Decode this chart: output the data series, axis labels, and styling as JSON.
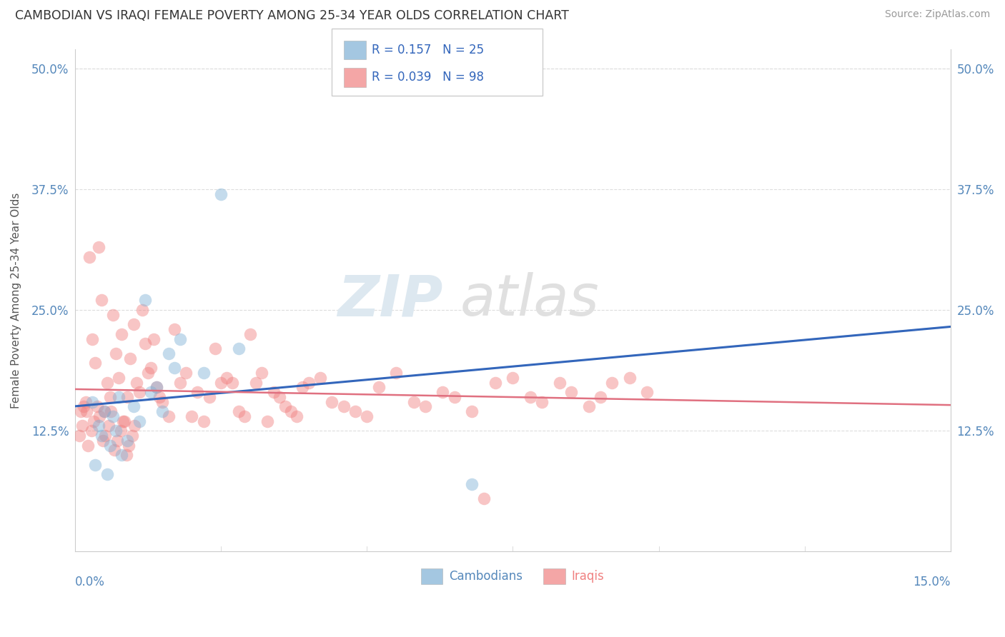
{
  "title": "CAMBODIAN VS IRAQI FEMALE POVERTY AMONG 25-34 YEAR OLDS CORRELATION CHART",
  "source": "Source: ZipAtlas.com",
  "ylabel": "Female Poverty Among 25-34 Year Olds",
  "xlim": [
    0.0,
    15.0
  ],
  "ylim": [
    0.0,
    52.0
  ],
  "yticks": [
    12.5,
    25.0,
    37.5,
    50.0
  ],
  "ytick_labels": [
    "12.5%",
    "25.0%",
    "37.5%",
    "50.0%"
  ],
  "xtick_left": "0.0%",
  "xtick_right": "15.0%",
  "cambodian_R": 0.157,
  "cambodian_N": 25,
  "iraqi_R": 0.039,
  "iraqi_N": 98,
  "cambodian_color": "#7EB0D5",
  "iraqi_color": "#F08080",
  "cambodian_trend_color": "#3366BB",
  "iraqi_trend_color": "#E07080",
  "background_color": "#ffffff",
  "grid_color": "#dddddd",
  "axis_color": "#cccccc",
  "tick_color": "#5588BB",
  "title_color": "#333333",
  "source_color": "#999999",
  "ylabel_color": "#555555",
  "legend_border_color": "#cccccc",
  "legend_text_color": "#3366BB",
  "legend_N_color": "#E07070",
  "watermark_zip_color": "#dde8f0",
  "watermark_atlas_color": "#e0e0e0",
  "cam_x": [
    0.3,
    1.2,
    2.5,
    1.8,
    0.5,
    0.4,
    0.7,
    1.0,
    0.6,
    0.8,
    1.4,
    1.7,
    0.9,
    1.1,
    1.3,
    1.5,
    0.35,
    0.55,
    2.2,
    2.8,
    0.45,
    0.65,
    6.8,
    0.75,
    1.6
  ],
  "cam_y": [
    15.5,
    26.0,
    37.0,
    22.0,
    14.5,
    13.0,
    12.5,
    15.0,
    11.0,
    10.0,
    17.0,
    19.0,
    11.5,
    13.5,
    16.5,
    14.5,
    9.0,
    8.0,
    18.5,
    21.0,
    12.0,
    14.0,
    7.0,
    16.0,
    20.5
  ],
  "iq_x": [
    0.15,
    0.2,
    0.25,
    0.3,
    0.35,
    0.4,
    0.45,
    0.5,
    0.55,
    0.6,
    0.65,
    0.7,
    0.75,
    0.8,
    0.85,
    0.9,
    0.95,
    1.0,
    1.05,
    1.1,
    1.15,
    1.2,
    1.25,
    1.3,
    1.35,
    1.4,
    1.45,
    1.5,
    1.6,
    1.7,
    1.8,
    1.9,
    2.0,
    2.1,
    2.2,
    2.3,
    2.4,
    2.5,
    2.6,
    2.7,
    2.8,
    2.9,
    3.0,
    3.1,
    3.2,
    3.3,
    3.4,
    3.5,
    3.6,
    3.7,
    3.8,
    3.9,
    4.0,
    4.2,
    4.4,
    4.6,
    4.8,
    5.0,
    5.2,
    5.5,
    5.8,
    6.0,
    6.3,
    6.5,
    6.8,
    7.0,
    7.2,
    7.5,
    7.8,
    8.0,
    8.3,
    8.5,
    8.8,
    9.0,
    9.2,
    9.5,
    9.8,
    0.1,
    0.12,
    0.08,
    0.18,
    0.22,
    0.28,
    0.32,
    0.38,
    0.42,
    0.48,
    0.52,
    0.58,
    0.62,
    0.68,
    0.72,
    0.78,
    0.82,
    0.88,
    0.92,
    0.98,
    1.02
  ],
  "iq_y": [
    15.0,
    14.5,
    30.5,
    22.0,
    19.5,
    31.5,
    26.0,
    14.5,
    17.5,
    16.0,
    24.5,
    20.5,
    18.0,
    22.5,
    13.5,
    16.0,
    20.0,
    23.5,
    17.5,
    16.5,
    25.0,
    21.5,
    18.5,
    19.0,
    22.0,
    17.0,
    16.0,
    15.5,
    14.0,
    23.0,
    17.5,
    18.5,
    14.0,
    16.5,
    13.5,
    16.0,
    21.0,
    17.5,
    18.0,
    17.5,
    14.5,
    14.0,
    22.5,
    17.5,
    18.5,
    13.5,
    16.5,
    16.0,
    15.0,
    14.5,
    14.0,
    17.0,
    17.5,
    18.0,
    15.5,
    15.0,
    14.5,
    14.0,
    17.0,
    18.5,
    15.5,
    15.0,
    16.5,
    16.0,
    14.5,
    5.5,
    17.5,
    18.0,
    16.0,
    15.5,
    17.5,
    16.5,
    15.0,
    16.0,
    17.5,
    18.0,
    16.5,
    14.5,
    13.0,
    12.0,
    15.5,
    11.0,
    12.5,
    13.5,
    15.0,
    14.0,
    11.5,
    12.0,
    13.0,
    14.5,
    10.5,
    11.5,
    12.5,
    13.5,
    10.0,
    11.0,
    12.0,
    13.0
  ]
}
